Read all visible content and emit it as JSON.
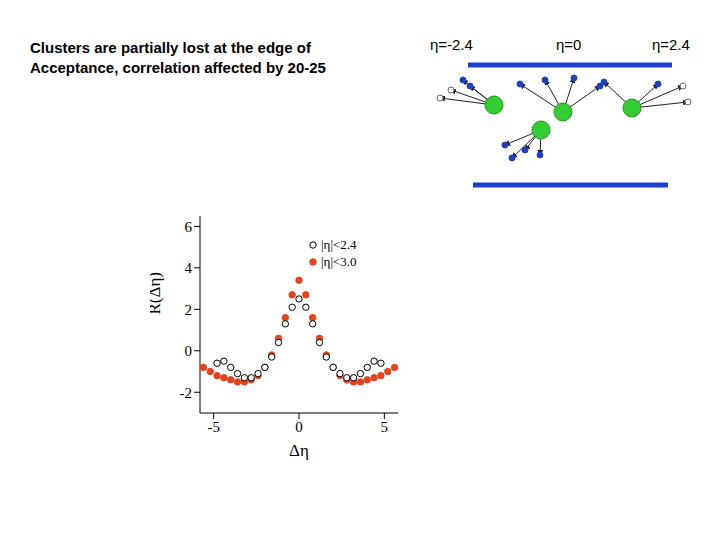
{
  "text": [
    "Clusters are partially lost at the edge of",
    "Acceptance, correlation affected by 20-25"
  ],
  "diagram": {
    "labels": [
      "η=-2.4",
      "η=0",
      "η=2.4"
    ]
  },
  "chart_data": {
    "type": "scatter",
    "xlabel": "Δη",
    "ylabel": "R(Δη)",
    "xlim": [
      -5.8,
      5.8
    ],
    "ylim": [
      -3,
      6.5
    ],
    "xticks": [
      -5,
      0,
      5
    ],
    "yticks": [
      -2,
      0,
      2,
      4,
      6
    ],
    "legend": "upper right",
    "series": [
      {
        "name": "|η|<3.0",
        "color": "#e8401c",
        "marker": "circle",
        "x": [
          -5.6,
          -5.2,
          -4.8,
          -4.4,
          -4.0,
          -3.6,
          -3.2,
          -2.8,
          -2.4,
          -2.0,
          -1.6,
          -1.2,
          -0.8,
          -0.4,
          0,
          0.4,
          0.8,
          1.2,
          1.6,
          2.0,
          2.4,
          2.8,
          3.2,
          3.6,
          4.0,
          4.4,
          4.8,
          5.2,
          5.6
        ],
        "values": [
          -0.8,
          -1.0,
          -1.2,
          -1.3,
          -1.4,
          -1.5,
          -1.5,
          -1.4,
          -1.2,
          -0.8,
          -0.2,
          0.6,
          1.6,
          2.7,
          3.4,
          2.7,
          1.6,
          0.6,
          -0.2,
          -0.8,
          -1.2,
          -1.4,
          -1.5,
          -1.5,
          -1.4,
          -1.3,
          -1.2,
          -1.0,
          -0.8
        ]
      },
      {
        "name": "|η|<2.4",
        "color": "#000000",
        "marker": "open_circle",
        "x": [
          -4.8,
          -4.4,
          -4.0,
          -3.6,
          -3.2,
          -2.8,
          -2.4,
          -2.0,
          -1.6,
          -1.2,
          -0.8,
          -0.4,
          0,
          0.4,
          0.8,
          1.2,
          1.6,
          2.0,
          2.4,
          2.8,
          3.2,
          3.6,
          4.0,
          4.4,
          4.8
        ],
        "values": [
          -0.6,
          -0.5,
          -0.8,
          -1.1,
          -1.3,
          -1.3,
          -1.1,
          -0.8,
          -0.3,
          0.4,
          1.3,
          2.1,
          2.5,
          2.1,
          1.3,
          0.4,
          -0.3,
          -0.8,
          -1.1,
          -1.3,
          -1.3,
          -1.1,
          -0.8,
          -0.5,
          -0.6
        ]
      }
    ]
  }
}
